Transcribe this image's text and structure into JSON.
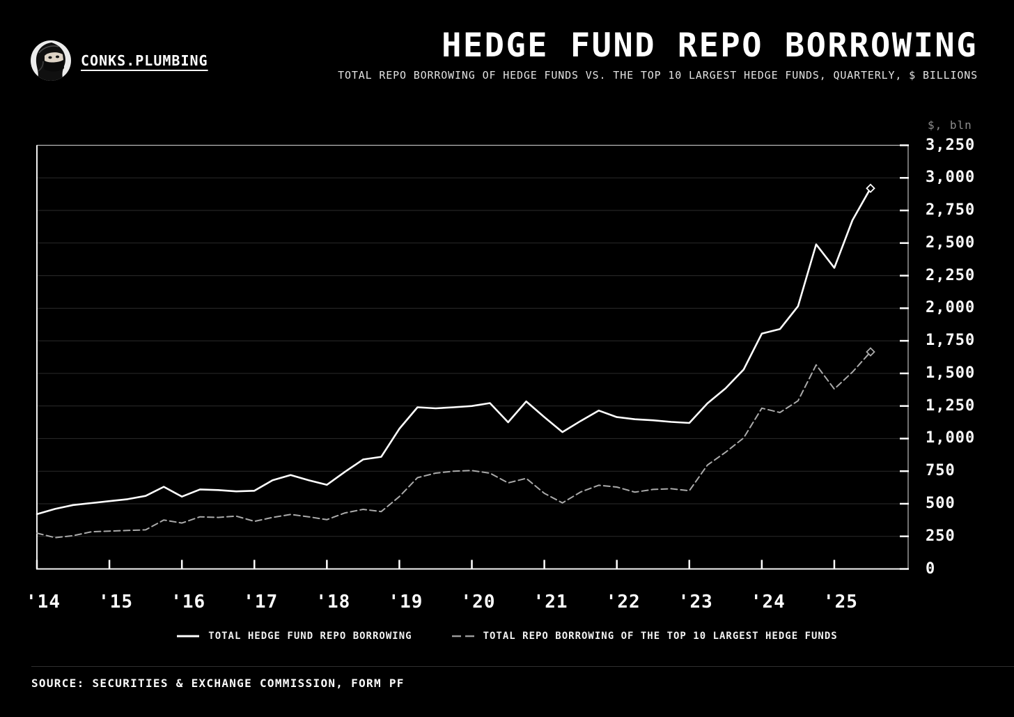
{
  "header": {
    "brand": "CONKS.PLUMBING",
    "avatar_icon": "ninja-avatar",
    "title": "HEDGE FUND REPO BORROWING",
    "subtitle": "TOTAL REPO BORROWING OF HEDGE FUNDS VS. THE TOP 10 LARGEST HEDGE FUNDS, QUARTERLY, $ BILLIONS"
  },
  "chart_data": {
    "type": "line",
    "title": "HEDGE FUND REPO BORROWING",
    "unit_label": "$, bln",
    "ylim": [
      0,
      3250
    ],
    "y_tick_interval": 250,
    "y_tick_labels": [
      "0",
      "250",
      "500",
      "750",
      "1,000",
      "1,250",
      "1,500",
      "1,750",
      "2,000",
      "2,250",
      "2,500",
      "2,750",
      "3,000",
      "3,250"
    ],
    "x_tick_labels": [
      "'14",
      "'15",
      "'16",
      "'17",
      "'18",
      "'19",
      "'20",
      "'21",
      "'22",
      "'23",
      "'24",
      "'25"
    ],
    "grid": "horizontal",
    "legend_position": "bottom",
    "quarters": [
      "2013Q4",
      "2014Q1",
      "2014Q2",
      "2014Q3",
      "2014Q4",
      "2015Q1",
      "2015Q2",
      "2015Q3",
      "2015Q4",
      "2016Q1",
      "2016Q2",
      "2016Q3",
      "2016Q4",
      "2017Q1",
      "2017Q2",
      "2017Q3",
      "2017Q4",
      "2018Q1",
      "2018Q2",
      "2018Q3",
      "2018Q4",
      "2019Q1",
      "2019Q2",
      "2019Q3",
      "2019Q4",
      "2020Q1",
      "2020Q2",
      "2020Q3",
      "2020Q4",
      "2021Q1",
      "2021Q2",
      "2021Q3",
      "2021Q4",
      "2022Q1",
      "2022Q2",
      "2022Q3",
      "2022Q4",
      "2023Q1",
      "2023Q2",
      "2023Q3",
      "2023Q4",
      "2024Q1",
      "2024Q2",
      "2024Q3",
      "2024Q4",
      "2025Q1",
      "2025Q2"
    ],
    "series": [
      {
        "name": "TOTAL HEDGE FUND REPO BORROWING",
        "style": "solid",
        "color": "#ffffff",
        "end_marker": "diamond",
        "values": [
          420,
          460,
          490,
          505,
          520,
          535,
          560,
          630,
          555,
          610,
          605,
          595,
          600,
          680,
          720,
          680,
          645,
          745,
          840,
          860,
          1075,
          1240,
          1232,
          1240,
          1250,
          1272,
          1125,
          1285,
          1165,
          1050,
          1135,
          1215,
          1165,
          1148,
          1140,
          1128,
          1120,
          1270,
          1385,
          1530,
          1805,
          1840,
          2015,
          2490,
          2310,
          2675,
          2920
        ]
      },
      {
        "name": "TOTAL REPO BORROWING OF THE TOP 10 LARGEST HEDGE FUNDS",
        "style": "dashed",
        "color": "#ababab",
        "end_marker": "diamond",
        "values": [
          275,
          240,
          255,
          285,
          290,
          295,
          300,
          375,
          352,
          400,
          395,
          405,
          365,
          395,
          418,
          400,
          378,
          430,
          457,
          440,
          555,
          700,
          735,
          750,
          755,
          735,
          660,
          695,
          580,
          507,
          590,
          642,
          628,
          589,
          610,
          615,
          600,
          797,
          895,
          1005,
          1233,
          1200,
          1290,
          1565,
          1380,
          1510,
          1665
        ]
      }
    ]
  },
  "footer": {
    "source": "SOURCE: SECURITIES & EXCHANGE COMMISSION, FORM PF"
  }
}
